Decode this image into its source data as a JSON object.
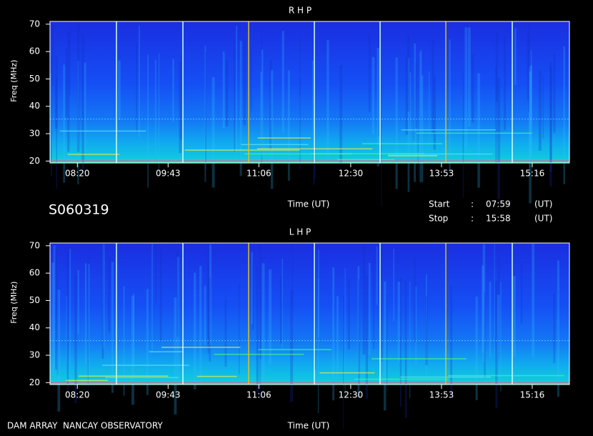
{
  "chart_data": [
    {
      "type": "spectrogram",
      "title": "R H P",
      "ylabel": "Freq (MHz)",
      "xlabel": "Time (UT)",
      "xlim": [
        475,
        950
      ],
      "xticks": [
        {
          "value": 500,
          "label": "08:20"
        },
        {
          "value": 583,
          "label": "09:43"
        },
        {
          "value": 666,
          "label": "11:06"
        },
        {
          "value": 750,
          "label": "12:30"
        },
        {
          "value": 833,
          "label": "13:53"
        },
        {
          "value": 916,
          "label": "15:16"
        }
      ],
      "ylim": [
        19.3,
        71
      ],
      "yticks": [
        20,
        30,
        40,
        50,
        60,
        70
      ]
    },
    {
      "type": "spectrogram",
      "title": "L H P",
      "ylabel": "Freq (MHz)",
      "xlabel": "Time (UT)",
      "xlim": [
        475,
        950
      ],
      "xticks": [
        {
          "value": 500,
          "label": "08:20"
        },
        {
          "value": 583,
          "label": "09:43"
        },
        {
          "value": 666,
          "label": "11:06"
        },
        {
          "value": 750,
          "label": "12:30"
        },
        {
          "value": 833,
          "label": "13:53"
        },
        {
          "value": 916,
          "label": "15:16"
        }
      ],
      "ylim": [
        19.3,
        71
      ],
      "yticks": [
        20,
        30,
        40,
        50,
        60,
        70
      ]
    }
  ],
  "observation": {
    "id": "S060319",
    "start_label": "Start",
    "start_sep": ":",
    "start": "07:59",
    "start_unit": "(UT)",
    "stop_label": "Stop",
    "stop_sep": ":",
    "stop": "15:58",
    "stop_unit": "(UT)"
  },
  "footer": "DAM ARRAY  NANCAY OBSERVATORY"
}
